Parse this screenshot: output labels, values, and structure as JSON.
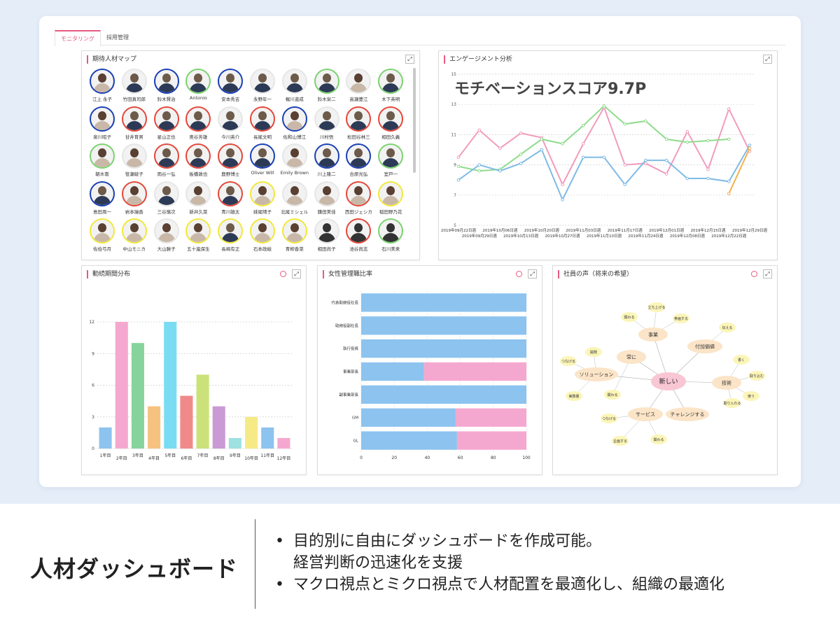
{
  "tabs": [
    "モニタリング",
    "採用管理"
  ],
  "panels": {
    "talent": "期待人材マップ",
    "engagement": "エンゲージメント分析",
    "tenure": "勤続期間分布",
    "women": "女性管理職比率",
    "voice": "社員の声（将来の希望）"
  },
  "expand_icon": "expand-icon",
  "colors": {
    "accent": "#e65a7f",
    "blue": "#1a3fb5",
    "red": "#e4473a",
    "green": "#7bd36f",
    "yellow": "#f2e83c"
  },
  "people": [
    {
      "name": "江上 永子",
      "ring": "blue",
      "type": "f"
    },
    {
      "name": "竹田真司郎",
      "ring": "none",
      "type": "m"
    },
    {
      "name": "鈴木賢治",
      "ring": "blue",
      "type": "m"
    },
    {
      "name": "Antonio",
      "ring": "green",
      "type": "m"
    },
    {
      "name": "安本秀吉",
      "ring": "blue",
      "type": "m"
    },
    {
      "name": "永野年一",
      "ring": "none",
      "type": "m"
    },
    {
      "name": "梶川道成",
      "ring": "none",
      "type": "m"
    },
    {
      "name": "鈴木栄二",
      "ring": "green",
      "type": "m"
    },
    {
      "name": "高瀬豊江",
      "ring": "none",
      "type": "f"
    },
    {
      "name": "木下英明",
      "ring": "green",
      "type": "m"
    },
    {
      "name": "泉川昭子",
      "ring": "blue",
      "type": "f"
    },
    {
      "name": "甘井育男",
      "ring": "red",
      "type": "m"
    },
    {
      "name": "星山正也",
      "ring": "red",
      "type": "m"
    },
    {
      "name": "奥谷芳雄",
      "ring": "red",
      "type": "m"
    },
    {
      "name": "今川英介",
      "ring": "none",
      "type": "m"
    },
    {
      "name": "長尾文明",
      "ring": "red",
      "type": "m"
    },
    {
      "name": "佐和山博江",
      "ring": "blue",
      "type": "f"
    },
    {
      "name": "川村悟",
      "ring": "none",
      "type": "m"
    },
    {
      "name": "松田谷林三",
      "ring": "red",
      "type": "m"
    },
    {
      "name": "相田久義",
      "ring": "red",
      "type": "m"
    },
    {
      "name": "朝木南",
      "ring": "green",
      "type": "f"
    },
    {
      "name": "笹瀬綾子",
      "ring": "none",
      "type": "f"
    },
    {
      "name": "雨谷一弘",
      "ring": "red",
      "type": "m"
    },
    {
      "name": "板橋敦也",
      "ring": "red",
      "type": "m"
    },
    {
      "name": "鹿野博士",
      "ring": "red",
      "type": "m"
    },
    {
      "name": "Oliver Will",
      "ring": "blue",
      "type": "m"
    },
    {
      "name": "Emily Brown",
      "ring": "none",
      "type": "f"
    },
    {
      "name": "川上隆二",
      "ring": "blue",
      "type": "m"
    },
    {
      "name": "合原光弘",
      "ring": "blue",
      "type": "m"
    },
    {
      "name": "室戸一",
      "ring": "green",
      "type": "m"
    },
    {
      "name": "島田周一",
      "ring": "blue",
      "type": "m"
    },
    {
      "name": "岩本瑞香",
      "ring": "red",
      "type": "f"
    },
    {
      "name": "三谷慎次",
      "ring": "none",
      "type": "m"
    },
    {
      "name": "新井久菜",
      "ring": "none",
      "type": "f"
    },
    {
      "name": "青川雄太",
      "ring": "red",
      "type": "m"
    },
    {
      "name": "妹尾晴子",
      "ring": "yellow",
      "type": "f"
    },
    {
      "name": "北尾ミシェル",
      "ring": "none",
      "type": "f"
    },
    {
      "name": "鎌田美佳",
      "ring": "none",
      "type": "f"
    },
    {
      "name": "西田ジェシカ",
      "ring": "red",
      "type": "f"
    },
    {
      "name": "稲田野乃花",
      "ring": "yellow",
      "type": "f"
    },
    {
      "name": "佐伯弓月",
      "ring": "yellow",
      "type": "f"
    },
    {
      "name": "中山モニカ",
      "ring": "yellow",
      "type": "f"
    },
    {
      "name": "大山勝子",
      "ring": "none",
      "type": "f"
    },
    {
      "name": "五十嵐保生",
      "ring": "yellow",
      "type": "f"
    },
    {
      "name": "長崎有正",
      "ring": "yellow",
      "type": "m"
    },
    {
      "name": "石本政絵",
      "ring": "yellow",
      "type": "f"
    },
    {
      "name": "青柳香菜",
      "ring": "yellow",
      "type": "f"
    },
    {
      "name": "相田尚子",
      "ring": "none",
      "type": "s"
    },
    {
      "name": "池谷尚志",
      "ring": "red",
      "type": "s"
    },
    {
      "name": "石川美来",
      "ring": "green",
      "type": "s"
    }
  ],
  "engagement": {
    "overlay": "モチベーションスコア9.7P",
    "y_ticks": [
      "15",
      "13",
      "11",
      "9",
      "7",
      "5"
    ],
    "x_ticks_top": [
      "2019年09月22日週",
      "2019年10月06日週",
      "2019年10月20日週",
      "2019年11月03日週",
      "2019年11月17日週",
      "2019年12月01日週",
      "2019年12月15日週",
      "2019年12月29日週"
    ],
    "x_ticks_bottom": [
      "2019年09月29日週",
      "2019年10月13日週",
      "2019年10月27日週",
      "2019年11月10日週",
      "2019年11月24日週",
      "2019年12月08日週",
      "2019年12月22日週"
    ]
  },
  "chart_data": [
    {
      "type": "line",
      "x": [
        "2019年09月22日週",
        "2019年09月29日週",
        "2019年10月06日週",
        "2019年10月13日週",
        "2019年10月20日週",
        "2019年10月27日週",
        "2019年11月03日週",
        "2019年11月10日週",
        "2019年11月17日週",
        "2019年11月24日週",
        "2019年12月01日週",
        "2019年12月08日週",
        "2019年12月15日週",
        "2019年12月22日週",
        "2019年12月29日週"
      ],
      "ylim": [
        5,
        15
      ],
      "series": [
        {
          "color": "#f29bbd",
          "values": [
            9.5,
            11.3,
            10.1,
            11.1,
            10.8,
            7.7,
            10.4,
            12.8,
            9.0,
            9.1,
            8.4,
            11.2,
            8.7,
            12.7,
            9.9
          ]
        },
        {
          "color": "#8fdc8c",
          "values": [
            8.9,
            8.6,
            8.7,
            9.7,
            10.7,
            10.4,
            11.6,
            12.9,
            11.7,
            11.9,
            10.7,
            10.5,
            10.6,
            10.7,
            null
          ]
        },
        {
          "color": "#7fbbe6",
          "values": [
            8.0,
            9.0,
            8.6,
            9.1,
            10.0,
            6.7,
            9.5,
            9.5,
            7.7,
            9.3,
            9.3,
            8.1,
            8.1,
            7.9,
            10.3
          ]
        },
        {
          "color": "#f5b04a",
          "values": [
            null,
            null,
            null,
            null,
            null,
            null,
            null,
            null,
            null,
            null,
            null,
            null,
            null,
            7.1,
            10.1
          ]
        }
      ]
    },
    {
      "type": "bar",
      "categories": [
        "1年目",
        "2年目",
        "3年目",
        "4年目",
        "5年目",
        "6年目",
        "7年目",
        "8年目",
        "9年目",
        "10年目",
        "11年目",
        "12年目"
      ],
      "values": [
        2,
        12,
        10,
        4,
        12,
        5,
        7,
        4,
        1,
        3,
        2,
        1
      ],
      "colors": [
        "#8cc3ef",
        "#f5a8cf",
        "#86d49c",
        "#f7c27f",
        "#79dcf2",
        "#f08a8a",
        "#cbe27a",
        "#c99ad4",
        "#9fe0e0",
        "#f6ea86",
        "#8cc3ef",
        "#f5a8cf"
      ],
      "ylim": [
        0,
        12
      ],
      "y_ticks": [
        "0",
        "3",
        "6",
        "9",
        "12"
      ]
    },
    {
      "type": "bar",
      "categories": [
        "代表取締役社長",
        "取締役副社長",
        "執行役員",
        "事業部長",
        "副事業部長",
        "GM",
        "GL"
      ],
      "series": [
        {
          "color": "#8cc3ef",
          "values": [
            100,
            100,
            100,
            38,
            100,
            57,
            58
          ]
        },
        {
          "color": "#f5a8cf",
          "values": [
            0,
            0,
            0,
            62,
            0,
            43,
            42
          ]
        }
      ],
      "xlim": [
        0,
        100
      ],
      "x_ticks": [
        "0",
        "20",
        "40",
        "60",
        "80",
        "100"
      ]
    }
  ],
  "voice": {
    "center": "新しい",
    "hubs": [
      "事業",
      "常に",
      "付加価値",
      "ソリューション",
      "技術",
      "サービス",
      "チャレンジする"
    ],
    "leaves": [
      "関わる",
      "立ち上げる",
      "参画する",
      "伝える",
      "開発",
      "つなげる",
      "書く",
      "取り込む",
      "使う",
      "実務量",
      "関わる",
      "取り入れる",
      "つなげる",
      "企画する",
      "関わる"
    ]
  },
  "caption": {
    "title": "人材ダッシュボード",
    "line1": "目的別に自由にダッシュボードを作成可能。",
    "line1b": "経営判断の迅速化を支援",
    "line2": "マクロ視点とミクロ視点で人材配置を最適化し、組織の最適化"
  }
}
